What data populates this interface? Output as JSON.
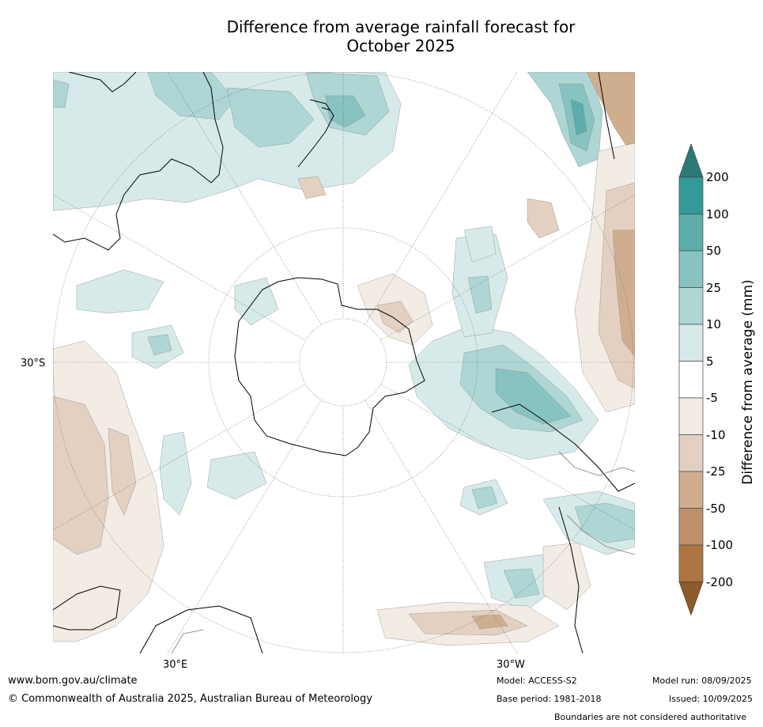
{
  "title_line1": "Difference from average rainfall forecast for",
  "title_line2": "October 2025",
  "labels": {
    "lat_30s": "30°S",
    "lon_30e": "30°E",
    "lon_30w": "30°W"
  },
  "colorbar": {
    "title": "Difference from average (mm)",
    "ticks": [
      "200",
      "100",
      "50",
      "25",
      "10",
      "5",
      "-5",
      "-10",
      "-25",
      "-50",
      "-100",
      "-200"
    ],
    "colors": [
      "#2a7b78",
      "#339a97",
      "#5cadab",
      "#86c3c1",
      "#add6d5",
      "#d6eae9",
      "#ffffff",
      "#f2ece5",
      "#e3d0c0",
      "#cfae90",
      "#be9068",
      "#ad7541",
      "#8e5b2a"
    ]
  },
  "footer": {
    "website": "www.bom.gov.au/climate",
    "copyright": "© Commonwealth of Australia 2025, Australian Bureau of Meteorology",
    "model": "Model: ACCESS-S2",
    "base_period": "Base period: 1981-2018",
    "model_run": "Model run: 08/09/2025",
    "issued": "Issued: 10/09/2025",
    "disclaimer": "Boundaries are not considered authoritative"
  }
}
